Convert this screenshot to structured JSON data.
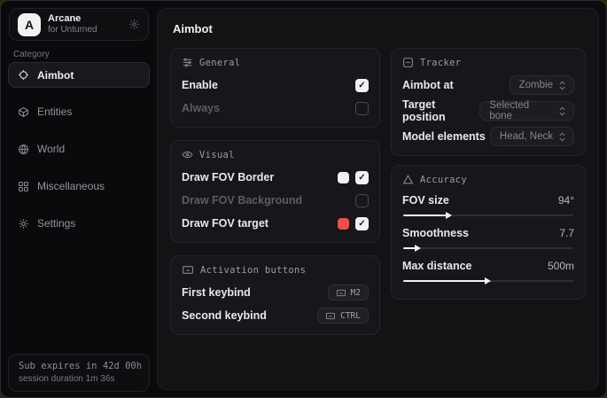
{
  "app": {
    "name": "Arcane",
    "subtitle": "for Unturned",
    "logo_letter": "A"
  },
  "sidebar": {
    "category_label": "Category",
    "items": [
      {
        "label": "Aimbot",
        "active": true
      },
      {
        "label": "Entities",
        "active": false
      },
      {
        "label": "World",
        "active": false
      },
      {
        "label": "Miscellaneous",
        "active": false
      },
      {
        "label": "Settings",
        "active": false
      }
    ],
    "footer": {
      "line1": "Sub expires in 42d 00h",
      "line2": "session duration 1m 36s"
    }
  },
  "main": {
    "title": "Aimbot",
    "general": {
      "title": "General",
      "rows": [
        {
          "label": "Enable",
          "checked": true,
          "disabled": false
        },
        {
          "label": "Always",
          "checked": false,
          "disabled": true
        }
      ]
    },
    "visual": {
      "title": "Visual",
      "rows": [
        {
          "label": "Draw FOV Border",
          "checked": true,
          "disabled": false,
          "swatch": "#f1f1f3"
        },
        {
          "label": "Draw FOV Background",
          "checked": false,
          "disabled": true,
          "swatch": null
        },
        {
          "label": "Draw FOV target",
          "checked": true,
          "disabled": false,
          "swatch": "#ee4f4b"
        }
      ]
    },
    "activation": {
      "title": "Activation buttons",
      "rows": [
        {
          "label": "First keybind",
          "key": "M2"
        },
        {
          "label": "Second keybind",
          "key": "CTRL"
        }
      ]
    },
    "tracker": {
      "title": "Tracker",
      "rows": [
        {
          "label": "Aimbot at",
          "value": "Zombie"
        },
        {
          "label": "Target position",
          "value": "Selected bone"
        },
        {
          "label": "Model elements",
          "value": "Head, Neck"
        }
      ]
    },
    "accuracy": {
      "title": "Accuracy",
      "rows": [
        {
          "label": "FOV size",
          "value": "94°",
          "percent": 26
        },
        {
          "label": "Smoothness",
          "value": "7.7",
          "percent": 8
        },
        {
          "label": "Max distance",
          "value": "500m",
          "percent": 49
        }
      ]
    }
  },
  "colors": {
    "swatch_border": "#f1f1f3",
    "swatch_target": "#ee4f4b",
    "accent": "#f1f1f3",
    "card_bg": "#17171b",
    "window_bg": "#0b0b0d"
  }
}
